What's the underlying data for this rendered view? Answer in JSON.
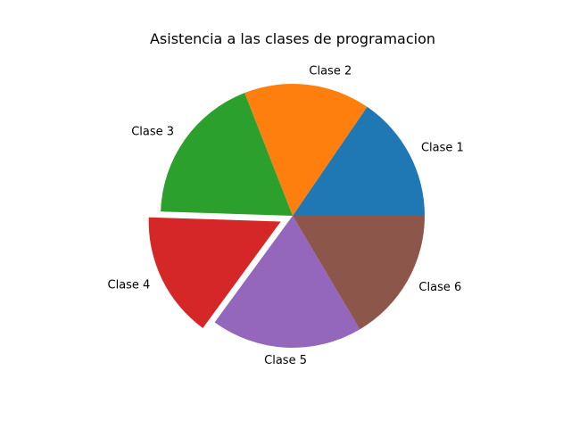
{
  "chart_data": {
    "type": "pie",
    "title": "Asistencia a las clases de programacion",
    "categories": [
      "Clase 1",
      "Clase 2",
      "Clase 3",
      "Clase 4",
      "Clase 5",
      "Clase 6"
    ],
    "values": [
      15,
      15,
      18,
      15,
      18,
      16
    ],
    "colors": [
      "#1f77b4",
      "#ff7f0e",
      "#2ca02c",
      "#d62728",
      "#9467bd",
      "#8c564b"
    ],
    "explode": [
      0,
      0,
      0,
      0.1,
      0,
      0
    ],
    "start_angle": 0,
    "direction": "counterclockwise",
    "legend": "none"
  }
}
